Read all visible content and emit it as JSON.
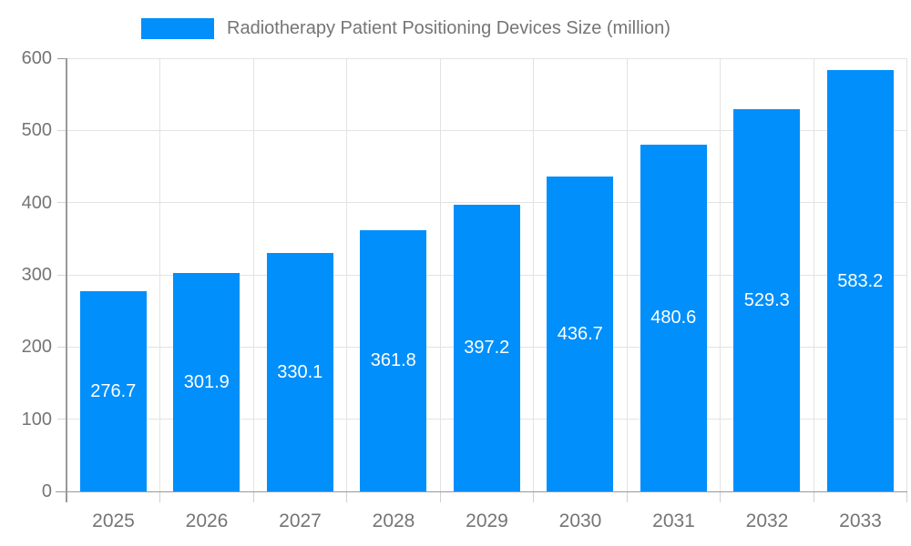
{
  "legend": {
    "label": "Radiotherapy Patient Positioning Devices Size (million)",
    "swatch_color": "#008FFB"
  },
  "chart_data": {
    "type": "bar",
    "title": "Radiotherapy Patient Positioning Devices Size (million)",
    "categories": [
      "2025",
      "2026",
      "2027",
      "2028",
      "2029",
      "2030",
      "2031",
      "2032",
      "2033"
    ],
    "values": [
      276.7,
      301.9,
      330.1,
      361.8,
      397.2,
      436.7,
      480.6,
      529.3,
      583.2
    ],
    "series_name": "Radiotherapy Patient Positioning Devices Size (million)",
    "xlabel": "",
    "ylabel": "",
    "ylim": [
      0,
      600
    ],
    "ytick_step": 100,
    "yticks": [
      0,
      100,
      200,
      300,
      400,
      500,
      600
    ],
    "grid": true,
    "legend_position": "top-center",
    "value_label_position": "inside-center",
    "colors": {
      "bar": "#008FFB",
      "value_label": "#ffffff",
      "axis_text": "#757575",
      "gridline": "#e3e3e3",
      "axis_line": "#999999",
      "background": "#ffffff"
    }
  }
}
